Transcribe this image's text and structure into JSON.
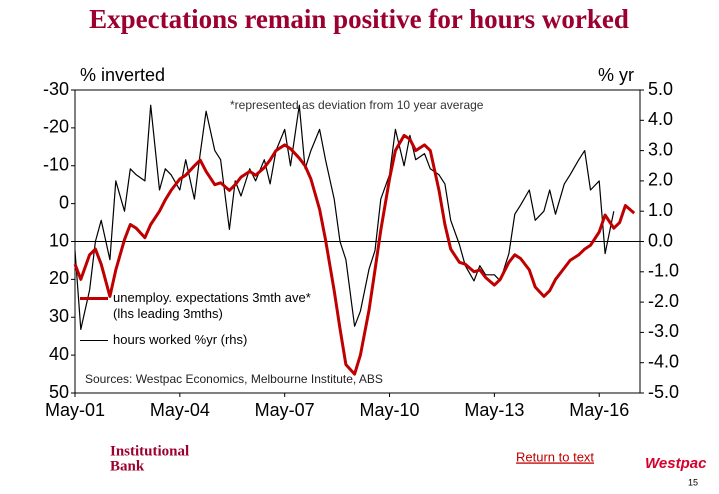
{
  "chart_data": {
    "type": "line",
    "title": "Expectations remain positive for hours worked",
    "ylabel": "% inverted",
    "y2label": "% yr",
    "note": "*represented as deviation from 10 year average",
    "source": "Sources: Westpac Economics, Melbourne Institute, ABS",
    "x": [
      "2001-05",
      "2001-07",
      "2001-10",
      "2001-12",
      "2002-02",
      "2002-05",
      "2002-07",
      "2002-10",
      "2002-12",
      "2003-02",
      "2003-05",
      "2003-07",
      "2003-10",
      "2003-12",
      "2004-02",
      "2004-05",
      "2004-07",
      "2004-10",
      "2004-12",
      "2005-02",
      "2005-05",
      "2005-07",
      "2005-10",
      "2005-12",
      "2006-02",
      "2006-05",
      "2006-07",
      "2006-10",
      "2006-12",
      "2007-02",
      "2007-05",
      "2007-07",
      "2007-10",
      "2007-12",
      "2008-02",
      "2008-05",
      "2008-07",
      "2008-10",
      "2008-12",
      "2009-02",
      "2009-05",
      "2009-07",
      "2009-10",
      "2009-12",
      "2010-02",
      "2010-05",
      "2010-07",
      "2010-10",
      "2010-12",
      "2011-02",
      "2011-05",
      "2011-07",
      "2011-10",
      "2011-12",
      "2012-02",
      "2012-05",
      "2012-07",
      "2012-10",
      "2012-12",
      "2013-02",
      "2013-05",
      "2013-07",
      "2013-10",
      "2013-12",
      "2014-02",
      "2014-05",
      "2014-07",
      "2014-10",
      "2014-12",
      "2015-02",
      "2015-05",
      "2015-07",
      "2015-10",
      "2015-12",
      "2016-02",
      "2016-05",
      "2016-07",
      "2016-10",
      "2016-12",
      "2017-02",
      "2017-05"
    ],
    "xlim": [
      "2001-05",
      "2017-07"
    ],
    "xticks": [
      {
        "value": "2001-05",
        "label": "May-01"
      },
      {
        "value": "2004-05",
        "label": "May-04"
      },
      {
        "value": "2007-05",
        "label": "May-07"
      },
      {
        "value": "2010-05",
        "label": "May-10"
      },
      {
        "value": "2013-05",
        "label": "May-13"
      },
      {
        "value": "2016-05",
        "label": "May-16"
      }
    ],
    "ylim": [
      -30,
      50
    ],
    "y_inverted": true,
    "yticks": [
      -30,
      -20,
      -10,
      0,
      10,
      20,
      30,
      40,
      50
    ],
    "y2lim": [
      -5,
      5
    ],
    "y2ticks": [
      {
        "value": 5,
        "label": "5.0"
      },
      {
        "value": 4,
        "label": "4.0"
      },
      {
        "value": 3,
        "label": "3.0"
      },
      {
        "value": 2,
        "label": "2.0"
      },
      {
        "value": 1,
        "label": "1.0"
      },
      {
        "value": 0,
        "label": "0.0"
      },
      {
        "value": -1,
        "label": "-1.0"
      },
      {
        "value": -2,
        "label": "-2.0"
      },
      {
        "value": -3,
        "label": "-3.0"
      },
      {
        "value": -4,
        "label": "-4.0"
      },
      {
        "value": -5,
        "label": "-5.0"
      }
    ],
    "y2_zero_line": true,
    "series": [
      {
        "name": "hours worked %yr (rhs)",
        "color": "#000000",
        "axis": "y2",
        "width": 1.2,
        "values": [
          -0.3,
          -2.9,
          -1.6,
          0.0,
          0.7,
          -0.6,
          2.0,
          1.0,
          2.4,
          2.2,
          2.0,
          4.5,
          1.7,
          2.4,
          2.2,
          1.7,
          2.7,
          1.4,
          2.9,
          4.3,
          3.0,
          2.7,
          0.4,
          2.0,
          1.5,
          2.4,
          2.0,
          2.7,
          1.9,
          3.0,
          3.7,
          2.5,
          4.5,
          2.4,
          3.0,
          3.7,
          2.7,
          1.4,
          0.0,
          -0.6,
          -2.8,
          -2.3,
          -0.9,
          -0.3,
          1.4,
          2.2,
          3.7,
          2.5,
          3.5,
          2.7,
          2.9,
          2.4,
          2.2,
          1.9,
          0.7,
          -0.1,
          -0.8,
          -1.3,
          -0.8,
          -1.1,
          -1.1,
          -1.3,
          -0.4,
          0.9,
          1.2,
          1.7,
          0.7,
          1.0,
          1.7,
          0.9,
          1.9,
          2.2,
          2.7,
          3.0,
          1.7,
          2.0,
          -0.4,
          1.0,
          null,
          null,
          null
        ]
      },
      {
        "name": "unemploy. expectations 3mth ave* (lhs leading 3mths)",
        "color": "#c00000",
        "axis": "y",
        "width": 3,
        "values": [
          16,
          20,
          13.5,
          12,
          16,
          24.5,
          17.5,
          9.5,
          5.5,
          6.5,
          9,
          5.5,
          2,
          -1,
          -3.5,
          -6.5,
          -7.5,
          -10,
          -11.5,
          -8.5,
          -5,
          -5.5,
          -3.5,
          -5,
          -7,
          -8.5,
          -7.5,
          -9.5,
          -11.5,
          -14,
          -15.5,
          -14.5,
          -12,
          -10,
          -6.5,
          1.5,
          9.5,
          23,
          33,
          42.5,
          45,
          40,
          28,
          17.5,
          7,
          -6.5,
          -14,
          -18,
          -17,
          -14,
          -15.5,
          -14,
          -3.5,
          5.5,
          12,
          15.5,
          16,
          18,
          17.5,
          19.5,
          21.5,
          20,
          15.5,
          13.5,
          14.5,
          17.5,
          22,
          24.5,
          23,
          20,
          17,
          15,
          13.5,
          12,
          11,
          7.5,
          3,
          6.5,
          5,
          0.5,
          2.5
        ]
      }
    ]
  },
  "footer": {
    "bank_line1": "Institutional",
    "bank_line2": "Bank",
    "link": "Return to text",
    "logo": "Westpac",
    "page": "15"
  }
}
